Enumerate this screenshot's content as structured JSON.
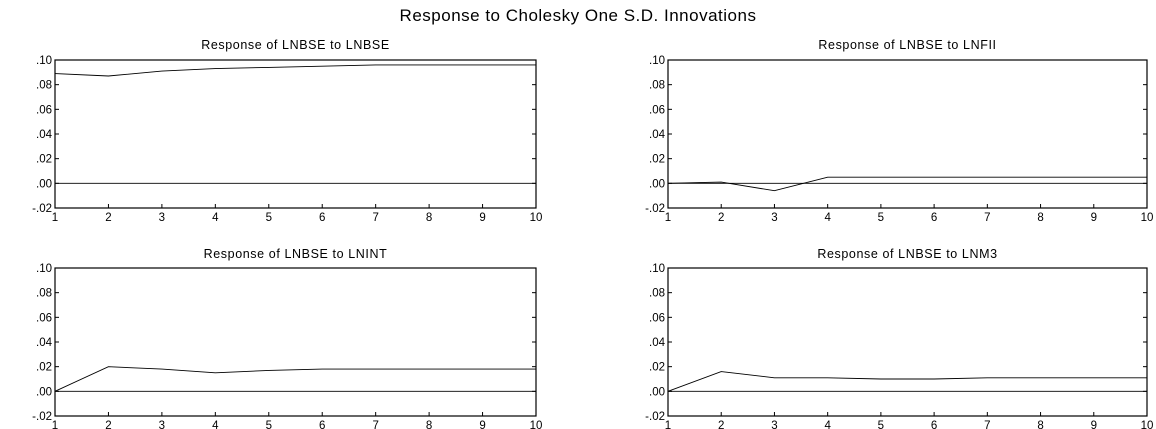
{
  "title": "Response to Cholesky One S.D. Innovations",
  "chart_data": [
    {
      "type": "line",
      "title": "Response of LNBSE to LNBSE",
      "x": [
        1,
        2,
        3,
        4,
        5,
        6,
        7,
        8,
        9,
        10
      ],
      "values": [
        0.089,
        0.087,
        0.091,
        0.093,
        0.094,
        0.095,
        0.096,
        0.096,
        0.096,
        0.096
      ],
      "ylim": [
        -0.02,
        0.1
      ],
      "yticks": [
        ".10",
        ".08",
        ".06",
        ".04",
        ".02",
        ".00",
        "-.02"
      ],
      "zero_line": true
    },
    {
      "type": "line",
      "title": "Response of LNBSE to LNFII",
      "x": [
        1,
        2,
        3,
        4,
        5,
        6,
        7,
        8,
        9,
        10
      ],
      "values": [
        0.0,
        0.001,
        -0.006,
        0.005,
        0.005,
        0.005,
        0.005,
        0.005,
        0.005,
        0.005
      ],
      "ylim": [
        -0.02,
        0.1
      ],
      "yticks": [
        ".10",
        ".08",
        ".06",
        ".04",
        ".02",
        ".00",
        "-.02"
      ],
      "zero_line": true
    },
    {
      "type": "line",
      "title": "Response of LNBSE to LNINT",
      "x": [
        1,
        2,
        3,
        4,
        5,
        6,
        7,
        8,
        9,
        10
      ],
      "values": [
        0.0,
        0.02,
        0.018,
        0.015,
        0.017,
        0.018,
        0.018,
        0.018,
        0.018,
        0.018
      ],
      "ylim": [
        -0.02,
        0.1
      ],
      "yticks": [
        ".10",
        ".08",
        ".06",
        ".04",
        ".02",
        ".00",
        "-.02"
      ],
      "zero_line": true
    },
    {
      "type": "line",
      "title": "Response of LNBSE to LNM3",
      "x": [
        1,
        2,
        3,
        4,
        5,
        6,
        7,
        8,
        9,
        10
      ],
      "values": [
        0.0,
        0.016,
        0.011,
        0.011,
        0.01,
        0.01,
        0.011,
        0.011,
        0.011,
        0.011
      ],
      "ylim": [
        -0.02,
        0.1
      ],
      "yticks": [
        ".10",
        ".08",
        ".06",
        ".04",
        ".02",
        ".00",
        "-.02"
      ],
      "zero_line": true
    }
  ]
}
